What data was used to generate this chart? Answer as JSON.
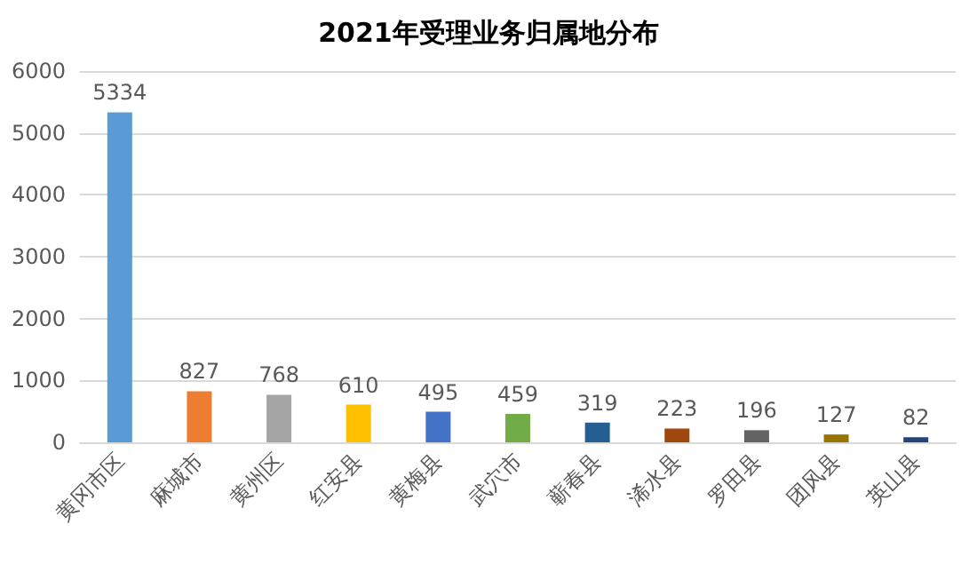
{
  "chart_data": {
    "type": "bar",
    "title": "2021年受理业务归属地分布",
    "categories": [
      "黄冈市区",
      "麻城市",
      "黄州区",
      "红安县",
      "黄梅县",
      "武穴市",
      "蕲春县",
      "浠水县",
      "罗田县",
      "团风县",
      "英山县"
    ],
    "values": [
      5334,
      827,
      768,
      610,
      495,
      459,
      319,
      223,
      196,
      127,
      82
    ],
    "colors": [
      "#5b9bd5",
      "#ed7d31",
      "#a5a5a5",
      "#ffc000",
      "#4472c4",
      "#70ad47",
      "#255e91",
      "#9e480e",
      "#636363",
      "#997300",
      "#264478"
    ],
    "ylim": [
      0,
      6000
    ],
    "yticks": [
      0,
      1000,
      2000,
      3000,
      4000,
      5000,
      6000
    ],
    "grid": "y",
    "data_labels": true
  }
}
